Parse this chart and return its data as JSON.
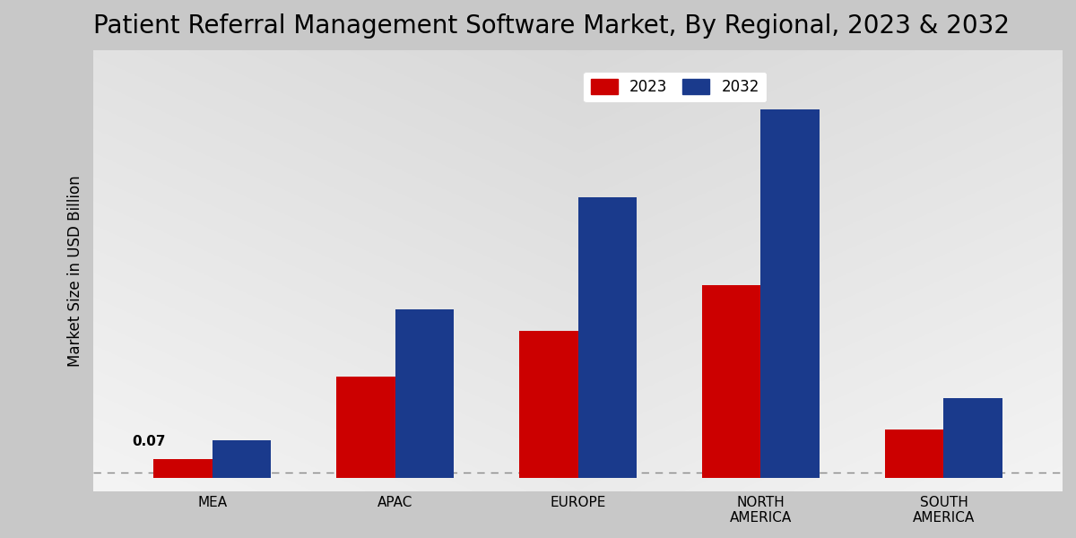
{
  "title": "Patient Referral Management Software Market, By Regional, 2023 & 2032",
  "ylabel": "Market Size in USD Billion",
  "categories": [
    "MEA",
    "APAC",
    "EUROPE",
    "NORTH\nAMERICA",
    "SOUTH\nAMERICA"
  ],
  "values_2023": [
    0.07,
    0.38,
    0.55,
    0.72,
    0.18
  ],
  "values_2032": [
    0.14,
    0.63,
    1.05,
    1.38,
    0.3
  ],
  "color_2023": "#cc0000",
  "color_2032": "#1a3a8c",
  "annotation_mea": "0.07",
  "title_fontsize": 20,
  "ylabel_fontsize": 12,
  "legend_fontsize": 12,
  "tick_fontsize": 11,
  "bar_width": 0.32,
  "ylim_max": 1.6
}
